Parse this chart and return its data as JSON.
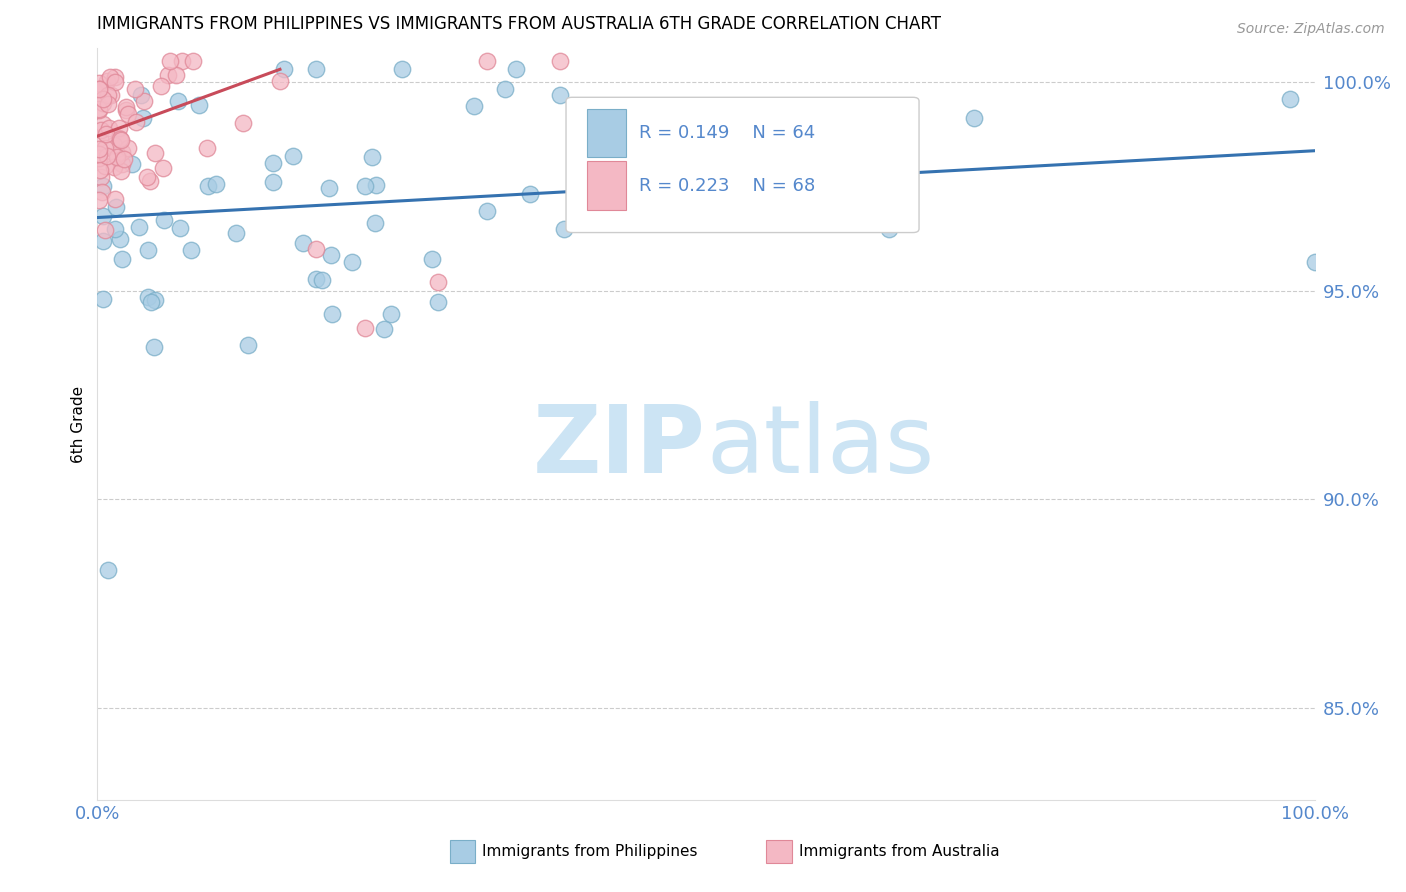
{
  "title": "IMMIGRANTS FROM PHILIPPINES VS IMMIGRANTS FROM AUSTRALIA 6TH GRADE CORRELATION CHART",
  "source": "Source: ZipAtlas.com",
  "ylabel_label": "6th Grade",
  "xlim": [
    0.0,
    1.0
  ],
  "ylim": [
    0.828,
    1.008
  ],
  "yticks": [
    0.85,
    0.9,
    0.95,
    1.0
  ],
  "ytick_labels": [
    "85.0%",
    "90.0%",
    "95.0%",
    "100.0%"
  ],
  "legend_r1": "R = 0.149",
  "legend_n1": "N = 64",
  "legend_r2": "R = 0.223",
  "legend_n2": "N = 68",
  "legend_label1": "Immigrants from Philippines",
  "legend_label2": "Immigrants from Australia",
  "blue_color": "#a8cce4",
  "blue_edge_color": "#7aaec8",
  "pink_color": "#f4b8c4",
  "pink_edge_color": "#e08898",
  "blue_line_color": "#3572b0",
  "pink_line_color": "#c84b5a",
  "tick_color": "#5588cc",
  "watermark_color": "#cce4f4",
  "blue_line_x0": 0.0,
  "blue_line_x1": 1.0,
  "blue_line_y0": 0.9675,
  "blue_line_y1": 0.9835,
  "pink_line_x0": 0.0,
  "pink_line_x1": 0.15,
  "pink_line_y0": 0.987,
  "pink_line_y1": 1.003
}
